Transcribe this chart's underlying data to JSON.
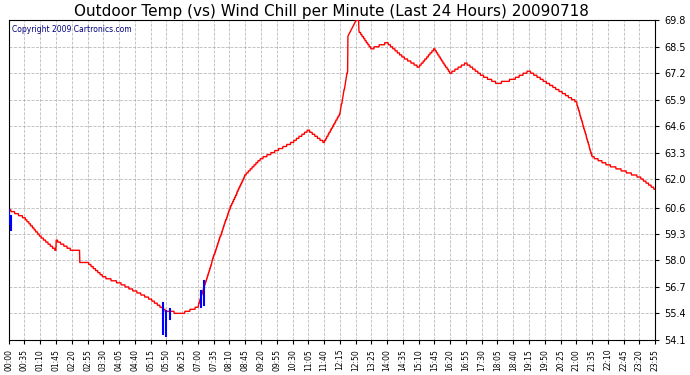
{
  "title": "Outdoor Temp (vs) Wind Chill per Minute (Last 24 Hours) 20090718",
  "copyright": "Copyright 2009 Cartronics.com",
  "title_fontsize": 11,
  "background_color": "#ffffff",
  "plot_bg_color": "#ffffff",
  "grid_color": "#aaaaaa",
  "line_color_red": "#ff0000",
  "line_color_blue": "#0000ff",
  "yticks": [
    54.1,
    55.4,
    56.7,
    58.0,
    59.3,
    60.6,
    62.0,
    63.3,
    64.6,
    65.9,
    67.2,
    68.5,
    69.8
  ],
  "ymin": 54.1,
  "ymax": 69.8,
  "xtick_labels": [
    "00:00",
    "00:35",
    "01:10",
    "01:45",
    "02:20",
    "02:55",
    "03:30",
    "04:05",
    "04:40",
    "05:15",
    "05:50",
    "06:25",
    "07:00",
    "07:35",
    "08:10",
    "08:45",
    "09:20",
    "09:55",
    "10:30",
    "11:05",
    "11:40",
    "12:15",
    "12:50",
    "13:25",
    "14:00",
    "14:35",
    "15:10",
    "15:45",
    "16:20",
    "16:55",
    "17:30",
    "18:05",
    "18:40",
    "19:15",
    "19:50",
    "20:25",
    "21:00",
    "21:35",
    "22:10",
    "22:45",
    "23:20",
    "23:55"
  ],
  "red_y_at_ticks": [
    60.5,
    60.1,
    59.2,
    58.5,
    58.0,
    57.9,
    57.2,
    56.9,
    56.5,
    56.1,
    55.5,
    55.4,
    55.7,
    58.2,
    60.5,
    62.2,
    63.0,
    63.4,
    63.8,
    64.4,
    63.8,
    65.2,
    69.5,
    68.4,
    68.7,
    68.0,
    67.5,
    68.4,
    67.2,
    67.7,
    67.1,
    66.7,
    66.9,
    67.3,
    66.8,
    66.3,
    65.8,
    63.1,
    62.7,
    62.4,
    62.1,
    61.5
  ],
  "blue_segments": [
    {
      "x": [
        0.0,
        0.0
      ],
      "y": [
        60.5,
        59.8
      ]
    },
    {
      "x": [
        0.15,
        0.15
      ],
      "y": [
        60.2,
        59.5
      ]
    },
    {
      "x": [
        9.8,
        9.8
      ],
      "y": [
        55.9,
        54.4
      ]
    },
    {
      "x": [
        10.0,
        10.0
      ],
      "y": [
        55.5,
        54.3
      ]
    },
    {
      "x": [
        10.2,
        10.2
      ],
      "y": [
        55.6,
        55.1
      ]
    },
    {
      "x": [
        12.2,
        12.2
      ],
      "y": [
        56.5,
        55.7
      ]
    },
    {
      "x": [
        12.4,
        12.4
      ],
      "y": [
        57.0,
        55.8
      ]
    }
  ]
}
